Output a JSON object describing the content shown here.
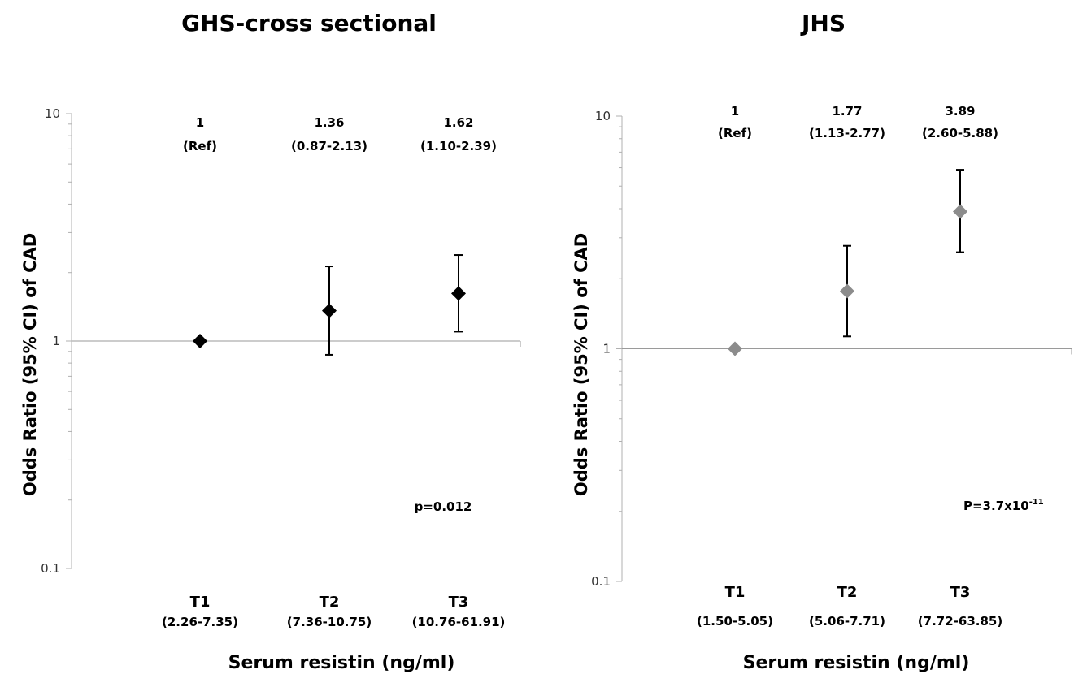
{
  "chart_data": [
    {
      "type": "scatter",
      "title": "GHS-cross sectional",
      "ylabel": "Odds Ratio (95% CI) of CAD",
      "xlabel": "Serum resistin (ng/ml)",
      "y_scale": "log",
      "ylim": [
        0.1,
        10
      ],
      "y_ticks": [
        "10",
        "1",
        "0.1"
      ],
      "categories": [
        "T1",
        "T2",
        "T3"
      ],
      "category_ranges": [
        "(2.26-7.35)",
        "(7.36-10.75)",
        "(10.76-61.91)"
      ],
      "values": [
        1,
        1.36,
        1.62
      ],
      "ci_low": [
        1,
        0.87,
        1.1
      ],
      "ci_high": [
        1,
        2.13,
        2.39
      ],
      "value_labels": [
        "1",
        "1.36",
        "1.62"
      ],
      "ci_labels": [
        "(Ref)",
        "(0.87-2.13)",
        "(1.10-2.39)"
      ],
      "p_value": "p=0.012",
      "marker": "diamond",
      "color": "#000000"
    },
    {
      "type": "scatter",
      "title": "JHS",
      "ylabel": "Odds Ratio (95% CI) of CAD",
      "xlabel": "Serum resistin (ng/ml)",
      "y_scale": "log",
      "ylim": [
        0.1,
        10
      ],
      "y_ticks": [
        "10",
        "1",
        "0.1"
      ],
      "categories": [
        "T1",
        "T2",
        "T3"
      ],
      "category_ranges": [
        "(1.50-5.05)",
        "(5.06-7.71)",
        "(7.72-63.85)"
      ],
      "values": [
        1,
        1.77,
        3.89
      ],
      "ci_low": [
        1,
        1.13,
        2.6
      ],
      "ci_high": [
        1,
        2.77,
        5.88
      ],
      "value_labels": [
        "1",
        "1.77",
        "3.89"
      ],
      "ci_labels": [
        "(Ref)",
        "(1.13-2.77)",
        "(2.60-5.88)"
      ],
      "p_value_base": "P=3.7x10",
      "p_value_exp": "-11",
      "marker": "diamond",
      "color": "#8c8c8c"
    }
  ]
}
